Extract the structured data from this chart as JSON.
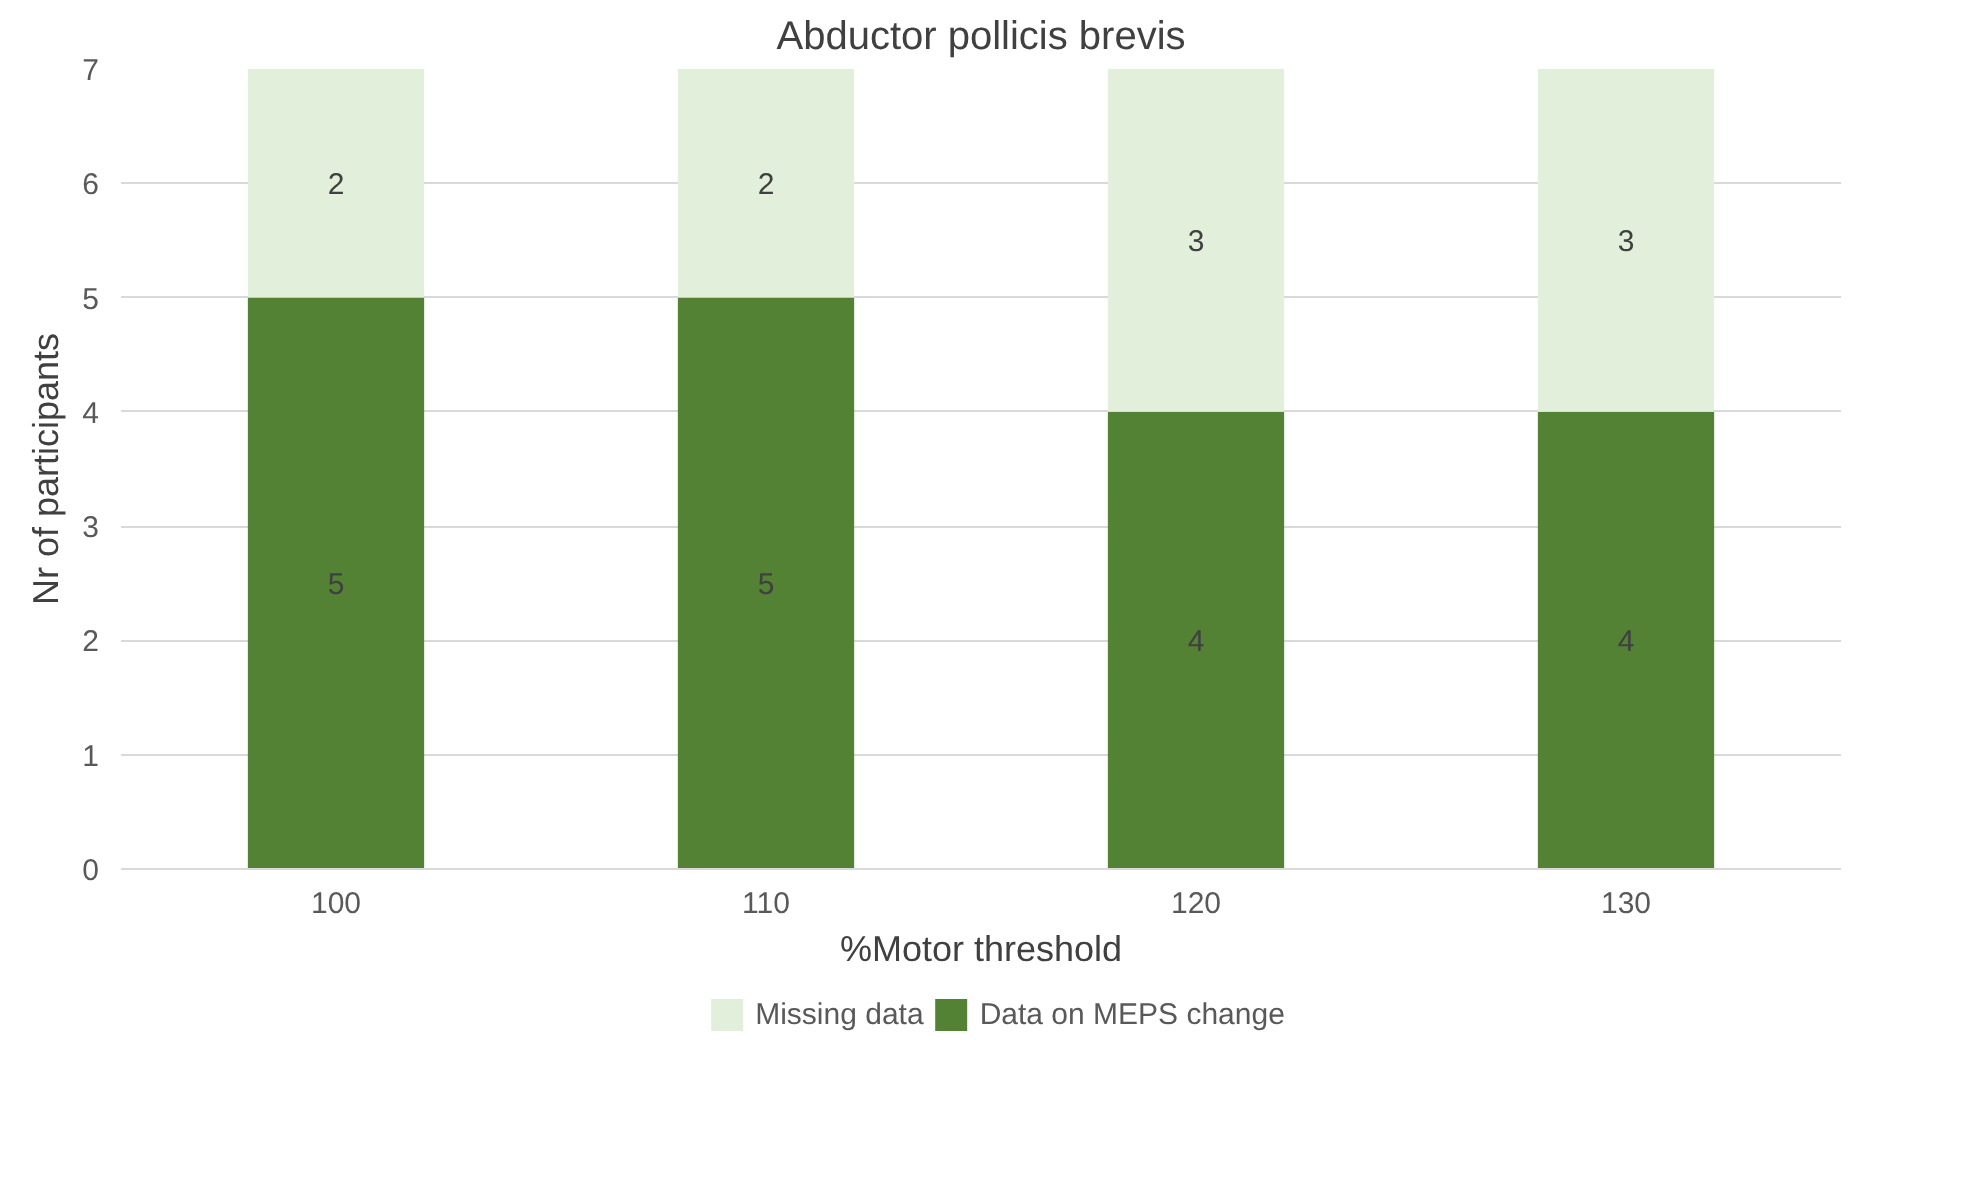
{
  "chart_data": {
    "type": "bar",
    "title": "Abductor pollicis brevis",
    "xlabel": "%Motor threshold",
    "ylabel": "Nr of participants",
    "categories": [
      "100",
      "110",
      "120",
      "130"
    ],
    "series": [
      {
        "name": "Data on MEPS change",
        "color": "#548235",
        "values": [
          5,
          5,
          4,
          4
        ]
      },
      {
        "name": "Missing data",
        "color": "#e2efda",
        "values": [
          2,
          2,
          3,
          3
        ]
      }
    ],
    "stacked": true,
    "ylim": [
      0,
      7
    ],
    "yticks": [
      0,
      1,
      2,
      3,
      4,
      5,
      6,
      7
    ],
    "grid": "y",
    "legend": "bottom",
    "data_labels": true
  }
}
